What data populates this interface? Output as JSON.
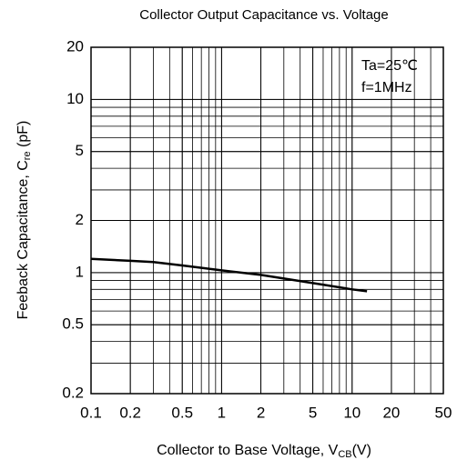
{
  "chart_data": {
    "type": "line",
    "title": "Collector Output Capacitance vs. Voltage",
    "xlabel": "Collector to Base Voltage, V",
    "xlabel_sub": "CB",
    "xlabel_suffix": "(V)",
    "ylabel": "Feeback Capacitance, C",
    "ylabel_sub": "re",
    "ylabel_suffix": " (pF)",
    "annotations": [
      "Ta=25℃",
      "f=1MHz"
    ],
    "x": [
      0.1,
      0.2,
      0.3,
      0.5,
      1,
      2,
      5,
      10,
      13
    ],
    "series": [
      {
        "name": "Cre",
        "color": "#000000",
        "values": [
          1.2,
          1.17,
          1.15,
          1.1,
          1.03,
          0.97,
          0.87,
          0.8,
          0.78
        ]
      }
    ],
    "xlim": [
      0.1,
      50
    ],
    "xticks": [
      0.1,
      0.2,
      0.5,
      1,
      2,
      5,
      10,
      20,
      50
    ],
    "ylim": [
      0.2,
      20
    ],
    "yticks": [
      0.2,
      0.5,
      1,
      2,
      5,
      10,
      20
    ],
    "xscale": "log",
    "yscale": "log",
    "grid": true,
    "minor_grid": true
  }
}
